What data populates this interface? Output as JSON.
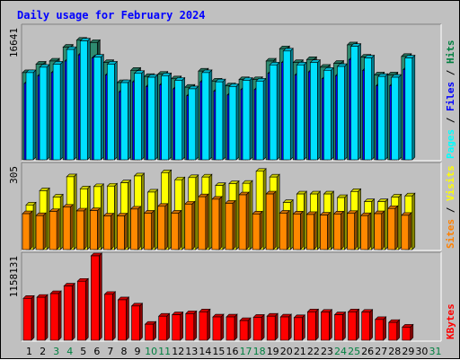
{
  "chart_data": {
    "type": "bar",
    "title": "Daily usage for February 2024",
    "days": [
      "1",
      "2",
      "3",
      "4",
      "5",
      "6",
      "7",
      "8",
      "9",
      "10",
      "11",
      "12",
      "13",
      "14",
      "15",
      "16",
      "17",
      "18",
      "19",
      "20",
      "21",
      "22",
      "23",
      "24",
      "25",
      "26",
      "27",
      "28",
      "29",
      "30",
      "31"
    ],
    "weekend_days": [
      "3",
      "4",
      "10",
      "11",
      "17",
      "18",
      "24",
      "25",
      "31"
    ],
    "panels": [
      {
        "name": "hits-files-pages",
        "max_label": "16641",
        "ylim": [
          0,
          16641
        ],
        "legend": [
          {
            "text": "Hits",
            "color": "#008040"
          },
          {
            "text": "Files",
            "color": "#0000ff"
          },
          {
            "text": "Pages",
            "color": "#00ffff"
          }
        ],
        "series": [
          {
            "name": "Hits",
            "color": "#2e8b70",
            "values": [
              11300,
              12400,
              12800,
              14600,
              15500,
              15200,
              12600,
              10000,
              11600,
              10800,
              11100,
              10500,
              9400,
              11500,
              10200,
              9600,
              10400,
              10400,
              12800,
              14400,
              12600,
              13000,
              12000,
              12500,
              14900,
              13300,
              11000,
              11000,
              13400,
              0,
              0
            ]
          },
          {
            "name": "Files",
            "color": "#0000ff",
            "values": [
              9900,
              10900,
              11300,
              12800,
              13600,
              13200,
              11000,
              8800,
              10100,
              9500,
              9700,
              9200,
              8300,
              10100,
              8900,
              8400,
              9100,
              9100,
              11200,
              12600,
              11000,
              11400,
              10500,
              10900,
              13000,
              11600,
              9600,
              9600,
              11700,
              0,
              0
            ]
          },
          {
            "name": "Pages",
            "color": "#00e0ff",
            "values": [
              11300,
              12000,
              12400,
              14300,
              15400,
              13300,
              12400,
              10000,
              11200,
              10700,
              10900,
              10300,
              9200,
              11300,
              10100,
              9500,
              10300,
              10200,
              12300,
              14100,
              12300,
              12600,
              11600,
              12100,
              14700,
              13200,
              10800,
              10700,
              13200,
              0,
              0
            ]
          }
        ]
      },
      {
        "name": "visits-sites",
        "max_label": "305",
        "ylim": [
          0,
          305
        ],
        "legend": [
          {
            "text": "Visits",
            "color": "#ffff00"
          },
          {
            "text": "Sites",
            "color": "#ff8000"
          }
        ],
        "series": [
          {
            "name": "Visits",
            "color": "#ffff00",
            "values": [
              163,
              215,
              192,
              266,
              222,
              230,
              232,
              244,
              269,
              210,
              281,
              255,
              263,
              265,
              234,
              241,
              242,
              286,
              265,
              172,
              203,
              203,
              203,
              190,
              212,
              175,
              175,
              192,
              196,
              0,
              0
            ]
          },
          {
            "name": "Sites",
            "color": "#ff8800",
            "values": [
              131,
              124,
              139,
              155,
              141,
              142,
              123,
              123,
              148,
              133,
              158,
              133,
              166,
              193,
              184,
              169,
              200,
              130,
              203,
              133,
              130,
              128,
              126,
              130,
              132,
              124,
              131,
              150,
              125,
              0,
              0
            ]
          }
        ]
      },
      {
        "name": "kbytes",
        "max_label": "1158131",
        "ylim": [
          0,
          1158131
        ],
        "legend": [
          {
            "text": "KBytes",
            "color": "#ff0000"
          }
        ],
        "series": [
          {
            "name": "KBytes",
            "color": "#ff0000",
            "values": [
              575000,
              590000,
              640000,
              745000,
              810000,
              1158131,
              630000,
              555000,
              470000,
              220000,
              330000,
              350000,
              365000,
              390000,
              320000,
              320000,
              270000,
              315000,
              330000,
              320000,
              310000,
              390000,
              385000,
              350000,
              390000,
              385000,
              285000,
              245000,
              180000,
              0,
              0
            ]
          }
        ]
      }
    ]
  }
}
